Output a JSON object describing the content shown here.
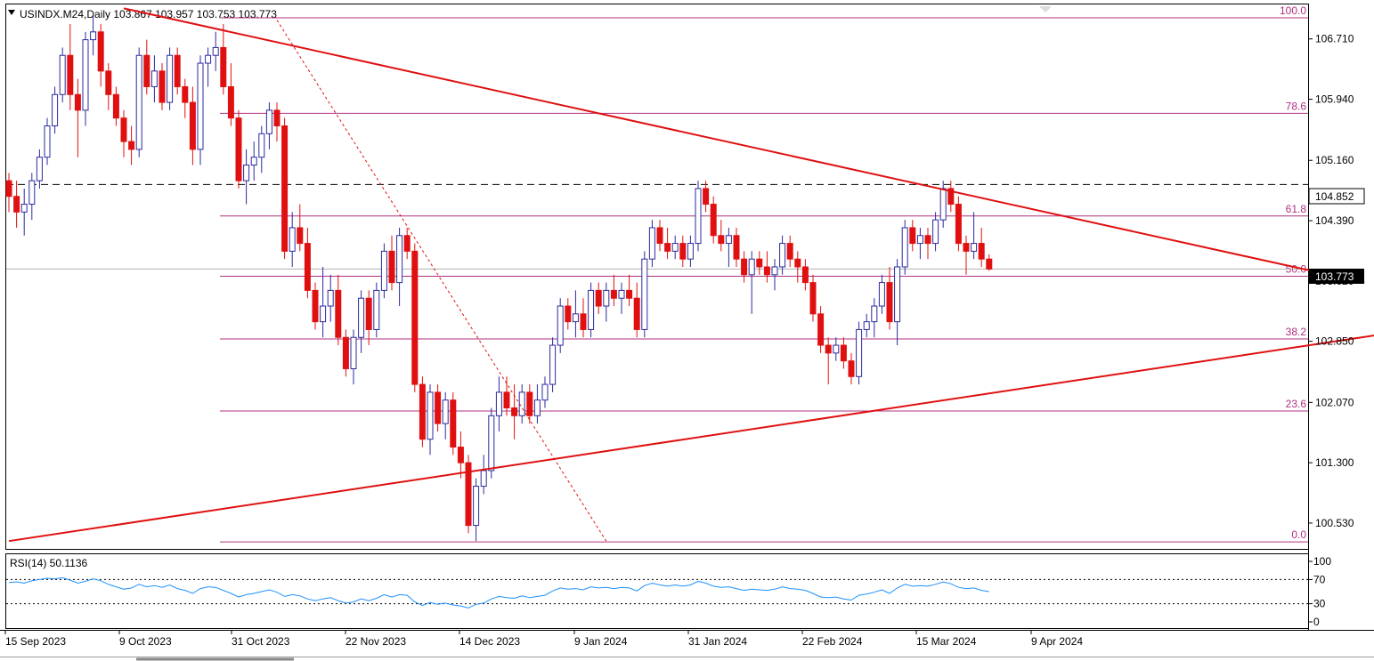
{
  "header": {
    "symbol": "USINDX.M24,Daily",
    "ohlc": "103.867 103.957 103.753 103.773"
  },
  "rsi_header": "RSI(14) 50.1136",
  "colors": {
    "bull": "#2a2aa0",
    "bear": "#e01010",
    "trendline": "#e01010",
    "fib": "#b03080",
    "rsi_line": "#1e90ff",
    "grid_dash": "#000000"
  },
  "chart_data": [
    {
      "type": "candlestick",
      "title": "USINDX.M24,Daily",
      "ylim": [
        100.2,
        107.15
      ],
      "y_ticks": [
        "106.710",
        "105.940",
        "105.160",
        "104.390",
        "103.620",
        "102.850",
        "102.070",
        "101.300",
        "100.530"
      ],
      "x_ticks": [
        "15 Sep 2023",
        "9 Oct 2023",
        "31 Oct 2023",
        "22 Nov 2023",
        "14 Dec 2023",
        "9 Jan 2024",
        "31 Jan 2024",
        "22 Feb 2024",
        "15 Mar 2024",
        "9 Apr 2024"
      ],
      "current_price": "103.773",
      "marked_level": "104.852",
      "fibonacci_levels": [
        {
          "label": "100.0",
          "value": 106.98
        },
        {
          "label": "78.6",
          "value": 105.76
        },
        {
          "label": "61.8",
          "value": 104.45
        },
        {
          "label": "50.0",
          "value": 103.68
        },
        {
          "label": "38.2",
          "value": 102.88
        },
        {
          "label": "23.6",
          "value": 101.96
        },
        {
          "label": "0.0",
          "value": 100.29
        }
      ],
      "candles": [
        {
          "o": 104.9,
          "h": 105.0,
          "l": 104.5,
          "c": 104.7
        },
        {
          "o": 104.7,
          "h": 104.9,
          "l": 104.3,
          "c": 104.5
        },
        {
          "o": 104.5,
          "h": 104.8,
          "l": 104.2,
          "c": 104.6
        },
        {
          "o": 104.6,
          "h": 105.0,
          "l": 104.4,
          "c": 104.9
        },
        {
          "o": 104.9,
          "h": 105.3,
          "l": 104.8,
          "c": 105.2
        },
        {
          "o": 105.2,
          "h": 105.7,
          "l": 105.1,
          "c": 105.6
        },
        {
          "o": 105.6,
          "h": 106.1,
          "l": 105.5,
          "c": 106.0
        },
        {
          "o": 106.0,
          "h": 106.6,
          "l": 105.9,
          "c": 106.5
        },
        {
          "o": 106.5,
          "h": 106.9,
          "l": 105.8,
          "c": 106.0
        },
        {
          "o": 106.0,
          "h": 106.2,
          "l": 105.2,
          "c": 105.8
        },
        {
          "o": 105.8,
          "h": 106.8,
          "l": 105.6,
          "c": 106.7
        },
        {
          "o": 106.7,
          "h": 107.0,
          "l": 106.5,
          "c": 106.8
        },
        {
          "o": 106.8,
          "h": 106.9,
          "l": 106.1,
          "c": 106.3
        },
        {
          "o": 106.3,
          "h": 106.4,
          "l": 105.8,
          "c": 106.0
        },
        {
          "o": 106.0,
          "h": 106.1,
          "l": 105.6,
          "c": 105.7
        },
        {
          "o": 105.7,
          "h": 105.8,
          "l": 105.2,
          "c": 105.4
        },
        {
          "o": 105.4,
          "h": 105.6,
          "l": 105.1,
          "c": 105.3
        },
        {
          "o": 105.3,
          "h": 106.6,
          "l": 105.2,
          "c": 106.5
        },
        {
          "o": 106.5,
          "h": 106.7,
          "l": 106.0,
          "c": 106.1
        },
        {
          "o": 106.1,
          "h": 106.5,
          "l": 105.9,
          "c": 106.3
        },
        {
          "o": 106.3,
          "h": 106.4,
          "l": 105.8,
          "c": 105.9
        },
        {
          "o": 105.9,
          "h": 106.6,
          "l": 105.8,
          "c": 106.5
        },
        {
          "o": 106.5,
          "h": 106.6,
          "l": 106.0,
          "c": 106.1
        },
        {
          "o": 106.1,
          "h": 106.2,
          "l": 105.7,
          "c": 105.9
        },
        {
          "o": 105.9,
          "h": 106.1,
          "l": 105.1,
          "c": 105.3
        },
        {
          "o": 105.3,
          "h": 106.5,
          "l": 105.1,
          "c": 106.4
        },
        {
          "o": 106.4,
          "h": 106.6,
          "l": 106.1,
          "c": 106.5
        },
        {
          "o": 106.5,
          "h": 106.8,
          "l": 106.3,
          "c": 106.6
        },
        {
          "o": 106.6,
          "h": 106.9,
          "l": 106.0,
          "c": 106.1
        },
        {
          "o": 106.1,
          "h": 106.4,
          "l": 105.6,
          "c": 105.7
        },
        {
          "o": 105.7,
          "h": 105.8,
          "l": 104.8,
          "c": 104.9
        },
        {
          "o": 104.9,
          "h": 105.3,
          "l": 104.6,
          "c": 105.1
        },
        {
          "o": 105.1,
          "h": 105.4,
          "l": 104.9,
          "c": 105.2
        },
        {
          "o": 105.2,
          "h": 105.6,
          "l": 105.0,
          "c": 105.5
        },
        {
          "o": 105.5,
          "h": 105.9,
          "l": 105.3,
          "c": 105.8
        },
        {
          "o": 105.8,
          "h": 105.9,
          "l": 105.4,
          "c": 105.6
        },
        {
          "o": 105.6,
          "h": 105.7,
          "l": 103.9,
          "c": 104.0
        },
        {
          "o": 104.0,
          "h": 104.5,
          "l": 103.8,
          "c": 104.3
        },
        {
          "o": 104.3,
          "h": 104.6,
          "l": 104.0,
          "c": 104.1
        },
        {
          "o": 104.1,
          "h": 104.3,
          "l": 103.4,
          "c": 103.5
        },
        {
          "o": 103.5,
          "h": 103.6,
          "l": 103.0,
          "c": 103.1
        },
        {
          "o": 103.1,
          "h": 103.8,
          "l": 102.9,
          "c": 103.3
        },
        {
          "o": 103.3,
          "h": 103.7,
          "l": 103.1,
          "c": 103.5
        },
        {
          "o": 103.5,
          "h": 103.7,
          "l": 102.8,
          "c": 102.9
        },
        {
          "o": 102.9,
          "h": 103.0,
          "l": 102.4,
          "c": 102.5
        },
        {
          "o": 102.5,
          "h": 103.0,
          "l": 102.3,
          "c": 102.9
        },
        {
          "o": 102.9,
          "h": 103.5,
          "l": 102.7,
          "c": 103.4
        },
        {
          "o": 103.4,
          "h": 103.5,
          "l": 102.8,
          "c": 103.0
        },
        {
          "o": 103.0,
          "h": 103.6,
          "l": 102.9,
          "c": 103.5
        },
        {
          "o": 103.5,
          "h": 104.1,
          "l": 103.4,
          "c": 104.0
        },
        {
          "o": 104.0,
          "h": 104.2,
          "l": 103.5,
          "c": 103.6
        },
        {
          "o": 103.6,
          "h": 104.3,
          "l": 103.3,
          "c": 104.2
        },
        {
          "o": 104.2,
          "h": 104.3,
          "l": 103.9,
          "c": 104.0
        },
        {
          "o": 104.0,
          "h": 104.1,
          "l": 102.2,
          "c": 102.3
        },
        {
          "o": 102.3,
          "h": 102.4,
          "l": 101.5,
          "c": 101.6
        },
        {
          "o": 101.6,
          "h": 102.3,
          "l": 101.4,
          "c": 102.2
        },
        {
          "o": 102.2,
          "h": 102.3,
          "l": 101.7,
          "c": 101.8
        },
        {
          "o": 101.8,
          "h": 102.2,
          "l": 101.6,
          "c": 102.1
        },
        {
          "o": 102.1,
          "h": 102.2,
          "l": 101.4,
          "c": 101.5
        },
        {
          "o": 101.5,
          "h": 101.7,
          "l": 101.1,
          "c": 101.3
        },
        {
          "o": 101.3,
          "h": 101.4,
          "l": 100.4,
          "c": 100.5
        },
        {
          "o": 100.5,
          "h": 101.1,
          "l": 100.3,
          "c": 101.0
        },
        {
          "o": 101.0,
          "h": 101.4,
          "l": 100.9,
          "c": 101.2
        },
        {
          "o": 101.2,
          "h": 102.0,
          "l": 101.1,
          "c": 101.9
        },
        {
          "o": 101.9,
          "h": 102.4,
          "l": 101.7,
          "c": 102.2
        },
        {
          "o": 102.2,
          "h": 102.4,
          "l": 101.9,
          "c": 102.0
        },
        {
          "o": 102.0,
          "h": 102.3,
          "l": 101.6,
          "c": 101.9
        },
        {
          "o": 101.9,
          "h": 102.3,
          "l": 101.8,
          "c": 102.2
        },
        {
          "o": 102.2,
          "h": 102.3,
          "l": 101.8,
          "c": 101.9
        },
        {
          "o": 101.9,
          "h": 102.3,
          "l": 101.8,
          "c": 102.1
        },
        {
          "o": 102.1,
          "h": 102.4,
          "l": 102.0,
          "c": 102.3
        },
        {
          "o": 102.3,
          "h": 102.9,
          "l": 102.2,
          "c": 102.8
        },
        {
          "o": 102.8,
          "h": 103.4,
          "l": 102.7,
          "c": 103.3
        },
        {
          "o": 103.3,
          "h": 103.4,
          "l": 103.0,
          "c": 103.1
        },
        {
          "o": 103.1,
          "h": 103.5,
          "l": 102.9,
          "c": 103.2
        },
        {
          "o": 103.2,
          "h": 103.4,
          "l": 102.9,
          "c": 103.0
        },
        {
          "o": 103.0,
          "h": 103.6,
          "l": 102.9,
          "c": 103.5
        },
        {
          "o": 103.5,
          "h": 103.6,
          "l": 103.2,
          "c": 103.3
        },
        {
          "o": 103.3,
          "h": 103.6,
          "l": 103.1,
          "c": 103.5
        },
        {
          "o": 103.5,
          "h": 103.7,
          "l": 103.3,
          "c": 103.4
        },
        {
          "o": 103.4,
          "h": 103.6,
          "l": 103.2,
          "c": 103.5
        },
        {
          "o": 103.5,
          "h": 103.7,
          "l": 103.3,
          "c": 103.4
        },
        {
          "o": 103.4,
          "h": 103.6,
          "l": 102.9,
          "c": 103.0
        },
        {
          "o": 103.0,
          "h": 104.0,
          "l": 102.9,
          "c": 103.9
        },
        {
          "o": 103.9,
          "h": 104.4,
          "l": 103.8,
          "c": 104.3
        },
        {
          "o": 104.3,
          "h": 104.4,
          "l": 104.0,
          "c": 104.1
        },
        {
          "o": 104.1,
          "h": 104.3,
          "l": 103.9,
          "c": 104.0
        },
        {
          "o": 104.0,
          "h": 104.2,
          "l": 103.9,
          "c": 104.1
        },
        {
          "o": 104.1,
          "h": 104.2,
          "l": 103.8,
          "c": 103.9
        },
        {
          "o": 103.9,
          "h": 104.2,
          "l": 103.8,
          "c": 104.1
        },
        {
          "o": 104.1,
          "h": 104.9,
          "l": 104.0,
          "c": 104.8
        },
        {
          "o": 104.8,
          "h": 104.9,
          "l": 104.5,
          "c": 104.6
        },
        {
          "o": 104.6,
          "h": 104.7,
          "l": 104.1,
          "c": 104.2
        },
        {
          "o": 104.2,
          "h": 104.4,
          "l": 104.0,
          "c": 104.1
        },
        {
          "o": 104.1,
          "h": 104.3,
          "l": 103.8,
          "c": 104.2
        },
        {
          "o": 104.2,
          "h": 104.3,
          "l": 103.8,
          "c": 103.9
        },
        {
          "o": 103.9,
          "h": 104.0,
          "l": 103.6,
          "c": 103.7
        },
        {
          "o": 103.7,
          "h": 104.0,
          "l": 103.2,
          "c": 103.9
        },
        {
          "o": 103.9,
          "h": 104.0,
          "l": 103.7,
          "c": 103.8
        },
        {
          "o": 103.8,
          "h": 104.0,
          "l": 103.6,
          "c": 103.7
        },
        {
          "o": 103.7,
          "h": 103.9,
          "l": 103.5,
          "c": 103.8
        },
        {
          "o": 103.8,
          "h": 104.2,
          "l": 103.7,
          "c": 104.1
        },
        {
          "o": 104.1,
          "h": 104.2,
          "l": 103.8,
          "c": 103.9
        },
        {
          "o": 103.9,
          "h": 104.0,
          "l": 103.6,
          "c": 103.8
        },
        {
          "o": 103.8,
          "h": 103.9,
          "l": 103.5,
          "c": 103.6
        },
        {
          "o": 103.6,
          "h": 103.7,
          "l": 103.1,
          "c": 103.2
        },
        {
          "o": 103.2,
          "h": 103.3,
          "l": 102.7,
          "c": 102.8
        },
        {
          "o": 102.8,
          "h": 102.9,
          "l": 102.3,
          "c": 102.7
        },
        {
          "o": 102.7,
          "h": 102.9,
          "l": 102.6,
          "c": 102.8
        },
        {
          "o": 102.8,
          "h": 102.9,
          "l": 102.5,
          "c": 102.6
        },
        {
          "o": 102.6,
          "h": 102.7,
          "l": 102.3,
          "c": 102.4
        },
        {
          "o": 102.4,
          "h": 103.1,
          "l": 102.3,
          "c": 103.0
        },
        {
          "o": 103.0,
          "h": 103.2,
          "l": 102.9,
          "c": 103.1
        },
        {
          "o": 103.1,
          "h": 103.4,
          "l": 102.9,
          "c": 103.3
        },
        {
          "o": 103.3,
          "h": 103.7,
          "l": 103.2,
          "c": 103.6
        },
        {
          "o": 103.6,
          "h": 103.8,
          "l": 103.0,
          "c": 103.1
        },
        {
          "o": 103.1,
          "h": 103.9,
          "l": 102.8,
          "c": 103.8
        },
        {
          "o": 103.8,
          "h": 104.4,
          "l": 103.7,
          "c": 104.3
        },
        {
          "o": 104.3,
          "h": 104.4,
          "l": 104.0,
          "c": 104.1
        },
        {
          "o": 104.1,
          "h": 104.3,
          "l": 103.9,
          "c": 104.2
        },
        {
          "o": 104.2,
          "h": 104.3,
          "l": 103.9,
          "c": 104.1
        },
        {
          "o": 104.1,
          "h": 104.5,
          "l": 104.0,
          "c": 104.4
        },
        {
          "o": 104.4,
          "h": 104.9,
          "l": 104.3,
          "c": 104.8
        },
        {
          "o": 104.8,
          "h": 104.9,
          "l": 104.5,
          "c": 104.6
        },
        {
          "o": 104.6,
          "h": 104.7,
          "l": 104.0,
          "c": 104.1
        },
        {
          "o": 104.1,
          "h": 104.2,
          "l": 103.7,
          "c": 104.0
        },
        {
          "o": 104.0,
          "h": 104.5,
          "l": 103.9,
          "c": 104.1
        },
        {
          "o": 104.1,
          "h": 104.3,
          "l": 103.8,
          "c": 103.9
        },
        {
          "o": 103.9,
          "h": 103.96,
          "l": 103.75,
          "c": 103.773
        }
      ],
      "trendlines": [
        {
          "from": {
            "index": 15,
            "value": 107.1
          },
          "to": {
            "index": 177,
            "value": 103.6
          }
        },
        {
          "from": {
            "index": 0,
            "value": 100.3
          },
          "to": {
            "index": 180,
            "value": 102.95
          }
        },
        {
          "from": {
            "index": 35,
            "value": 106.95
          },
          "to": {
            "index": 78,
            "value": 100.3
          },
          "style": "dashed"
        }
      ]
    },
    {
      "type": "line",
      "title": "RSI(14) 50.1136",
      "ylim": [
        0,
        100
      ],
      "y_ticks": [
        "100",
        "70",
        "30",
        "0"
      ],
      "levels": [
        70,
        30
      ],
      "series": [
        {
          "values": [
            65,
            66,
            64,
            68,
            70,
            72,
            71,
            73,
            69,
            64,
            67,
            71,
            68,
            62,
            58,
            54,
            56,
            62,
            58,
            60,
            57,
            61,
            55,
            52,
            47,
            55,
            58,
            57,
            52,
            47,
            41,
            45,
            47,
            50,
            53,
            49,
            42,
            45,
            43,
            38,
            35,
            38,
            40,
            35,
            31,
            33,
            38,
            35,
            39,
            45,
            41,
            45,
            44,
            33,
            27,
            32,
            29,
            31,
            28,
            26,
            23,
            29,
            31,
            38,
            42,
            40,
            39,
            43,
            40,
            42,
            44,
            51,
            56,
            54,
            55,
            53,
            58,
            56,
            57,
            55,
            57,
            56,
            51,
            60,
            64,
            61,
            59,
            61,
            59,
            61,
            67,
            64,
            59,
            57,
            58,
            55,
            52,
            54,
            53,
            52,
            54,
            58,
            55,
            54,
            52,
            47,
            41,
            40,
            41,
            38,
            36,
            44,
            46,
            49,
            53,
            47,
            56,
            62,
            59,
            60,
            59,
            62,
            66,
            63,
            57,
            55,
            56,
            52,
            50
          ]
        }
      ]
    }
  ]
}
